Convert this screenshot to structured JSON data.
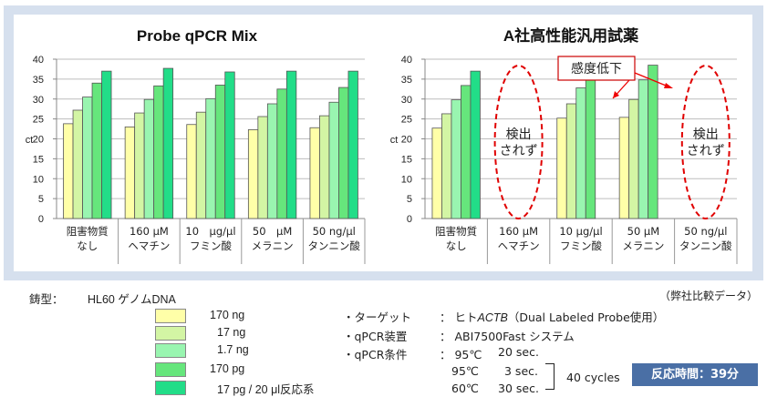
{
  "chart_data": [
    {
      "type": "bar",
      "title": "Probe qPCR Mix",
      "ylabel": "ct",
      "ylim": [
        0,
        40
      ],
      "yticks": [
        0,
        5,
        10,
        15,
        20,
        25,
        30,
        35,
        40
      ],
      "categories": [
        [
          "阻害物質",
          "なし"
        ],
        [
          "160 μM",
          "ヘマチン"
        ],
        [
          "10　μg/μl",
          "フミン酸"
        ],
        [
          "50　μM",
          "メラニン"
        ],
        [
          "50 ng/μl",
          "タンニン酸"
        ]
      ],
      "series": [
        {
          "name": "170 ng",
          "values": [
            23.8,
            23.0,
            23.6,
            22.3,
            22.8
          ]
        },
        {
          "name": "17 ng",
          "values": [
            27.2,
            26.5,
            26.7,
            25.6,
            25.8
          ]
        },
        {
          "name": "1.7 ng",
          "values": [
            30.5,
            29.9,
            30.1,
            28.8,
            29.2
          ]
        },
        {
          "name": "170 pg",
          "values": [
            34.0,
            33.3,
            33.5,
            32.5,
            32.9
          ]
        },
        {
          "name": "17 pg / 20 μl反応系",
          "values": [
            37.0,
            37.7,
            36.8,
            37.0,
            37.0
          ]
        }
      ],
      "grid": true
    },
    {
      "type": "bar",
      "title": "A社高性能汎用試薬",
      "ylabel": "ct",
      "ylim": [
        0,
        40
      ],
      "yticks": [
        0,
        5,
        10,
        15,
        20,
        25,
        30,
        35,
        40
      ],
      "categories": [
        [
          "阻害物質",
          "なし"
        ],
        [
          "160 μM",
          "ヘマチン"
        ],
        [
          "10 μg/μl",
          "フミン酸"
        ],
        [
          "50 μM",
          "メラニン"
        ],
        [
          "50 ng/μl",
          "タンニン酸"
        ]
      ],
      "series": [
        {
          "name": "170 ng",
          "values": [
            22.7,
            null,
            25.2,
            25.4,
            null
          ]
        },
        {
          "name": "17 ng",
          "values": [
            26.3,
            null,
            28.8,
            29.9,
            null
          ]
        },
        {
          "name": "1.7 ng",
          "values": [
            29.8,
            null,
            32.8,
            34.8,
            null
          ]
        },
        {
          "name": "170 pg",
          "values": [
            33.4,
            null,
            35.8,
            38.5,
            null
          ]
        },
        {
          "name": "17 pg / 20 μl反応系",
          "values": [
            37.0,
            null,
            null,
            null,
            null
          ]
        }
      ],
      "not_detected": [
        {
          "category_index": 1,
          "lines": [
            "検出",
            "されず"
          ]
        },
        {
          "category_index": 4,
          "lines": [
            "検出",
            "されず"
          ]
        }
      ],
      "callout": "感度低下",
      "grid": true
    }
  ],
  "colors": {
    "series": [
      "#ffffa8",
      "#d3f5a4",
      "#99f5b0",
      "#66e67c",
      "#22dd88"
    ],
    "bar_stroke": "#555555",
    "panel_bg": "#d6e0ee",
    "ellipse": "#e00000",
    "reaction_box": "#4a6fa5"
  },
  "template": {
    "label": "鋳型：",
    "value": "HL60 ゲノムDNA"
  },
  "note": "（弊社比較データ）",
  "legend": [
    {
      "label": "170 ng"
    },
    {
      "label": "17 ng"
    },
    {
      "label": "1.7 ng"
    },
    {
      "label": "170 pg"
    },
    {
      "label": "17 pg / 20 μl反応系"
    }
  ],
  "specs": {
    "target_label": "・ターゲット",
    "target_value_prefix": "： ヒト",
    "target_value_gene": "ACTB",
    "target_value_suffix": "（Dual Labeled Probe使用）",
    "device_label": "・qPCR装置",
    "device_value": "： ABI7500Fast システム",
    "cond_label": "・qPCR条件",
    "cond_rows": [
      {
        "temp": "： 95℃",
        "time": "20 sec."
      },
      {
        "temp": "95℃",
        "time": "3 sec."
      },
      {
        "temp": "60℃",
        "time": "30 sec."
      }
    ],
    "cycles": "40 cycles"
  },
  "reaction_time": "反応時間：39分"
}
